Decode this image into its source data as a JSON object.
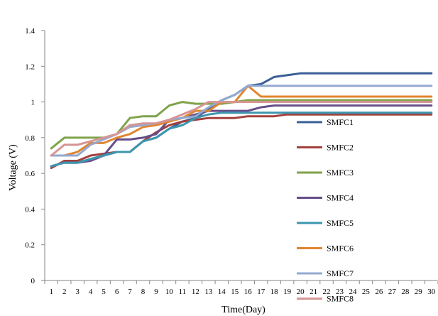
{
  "chart_data": {
    "type": "line",
    "title": "",
    "xlabel": "Time(Day)",
    "ylabel": "Voltage (V)",
    "ylim": [
      0,
      1.4
    ],
    "yticks": [
      "0",
      "0.2",
      "0.4",
      "0.6",
      "0.8",
      "1",
      "1.2",
      "1.4"
    ],
    "categories": [
      "1",
      "2",
      "3",
      "4",
      "5",
      "6",
      "7",
      "8",
      "9",
      "10",
      "11",
      "12",
      "13",
      "14",
      "15",
      "16",
      "17",
      "18",
      "19",
      "20",
      "21",
      "22",
      "23",
      "24",
      "25",
      "26",
      "27",
      "28",
      "29",
      "30"
    ],
    "grid": false,
    "legend_position": "right",
    "series": [
      {
        "name": "SMFC1",
        "color": "#3a5f97",
        "values": [
          0.64,
          0.66,
          0.66,
          0.68,
          0.7,
          0.72,
          0.72,
          0.78,
          0.8,
          0.85,
          0.89,
          0.91,
          0.96,
          1.01,
          1.04,
          1.09,
          1.1,
          1.14,
          1.15,
          1.16,
          1.16,
          1.16,
          1.16,
          1.16,
          1.16,
          1.16,
          1.16,
          1.16,
          1.16,
          1.16
        ]
      },
      {
        "name": "SMFC2",
        "color": "#a3403d",
        "values": [
          0.63,
          0.67,
          0.67,
          0.7,
          0.71,
          0.72,
          0.72,
          0.78,
          0.83,
          0.87,
          0.89,
          0.9,
          0.91,
          0.91,
          0.91,
          0.92,
          0.92,
          0.92,
          0.93,
          0.93,
          0.93,
          0.93,
          0.93,
          0.93,
          0.93,
          0.93,
          0.93,
          0.93,
          0.93,
          0.93
        ]
      },
      {
        "name": "SMFC3",
        "color": "#7fa34b",
        "values": [
          0.74,
          0.8,
          0.8,
          0.8,
          0.8,
          0.82,
          0.91,
          0.92,
          0.92,
          0.98,
          1.0,
          0.99,
          0.99,
          0.99,
          1.0,
          1.01,
          1.01,
          1.01,
          1.01,
          1.01,
          1.01,
          1.01,
          1.01,
          1.01,
          1.01,
          1.01,
          1.01,
          1.01,
          1.01,
          1.01
        ]
      },
      {
        "name": "SMFC4",
        "color": "#674d8a",
        "values": [
          0.64,
          0.66,
          0.66,
          0.67,
          0.7,
          0.79,
          0.79,
          0.8,
          0.82,
          0.9,
          0.91,
          0.93,
          0.95,
          0.95,
          0.95,
          0.95,
          0.97,
          0.98,
          0.98,
          0.98,
          0.98,
          0.98,
          0.98,
          0.98,
          0.98,
          0.98,
          0.98,
          0.98,
          0.98,
          0.98
        ]
      },
      {
        "name": "SMFC5",
        "color": "#3d96ae",
        "values": [
          0.64,
          0.66,
          0.66,
          0.68,
          0.7,
          0.72,
          0.72,
          0.78,
          0.8,
          0.85,
          0.87,
          0.91,
          0.93,
          0.94,
          0.94,
          0.94,
          0.94,
          0.94,
          0.94,
          0.94,
          0.94,
          0.94,
          0.94,
          0.94,
          0.94,
          0.94,
          0.94,
          0.94,
          0.94,
          0.94
        ]
      },
      {
        "name": "SMFC6",
        "color": "#e0852f",
        "values": [
          0.7,
          0.7,
          0.72,
          0.77,
          0.77,
          0.8,
          0.82,
          0.86,
          0.87,
          0.89,
          0.91,
          0.95,
          0.95,
          1.0,
          1.0,
          1.09,
          1.03,
          1.03,
          1.03,
          1.03,
          1.03,
          1.03,
          1.03,
          1.03,
          1.03,
          1.03,
          1.03,
          1.03,
          1.03,
          1.03
        ]
      },
      {
        "name": "SMFC7",
        "color": "#93a9d0",
        "values": [
          0.7,
          0.7,
          0.7,
          0.76,
          0.79,
          0.82,
          0.86,
          0.87,
          0.88,
          0.9,
          0.91,
          0.92,
          0.97,
          1.01,
          1.04,
          1.09,
          1.09,
          1.09,
          1.09,
          1.09,
          1.09,
          1.09,
          1.09,
          1.09,
          1.09,
          1.09,
          1.09,
          1.09,
          1.09,
          1.09
        ]
      },
      {
        "name": "SMFC8",
        "color": "#d69595",
        "values": [
          0.7,
          0.76,
          0.76,
          0.78,
          0.8,
          0.82,
          0.87,
          0.88,
          0.88,
          0.9,
          0.93,
          0.96,
          1.0,
          1.0,
          1.0,
          1.0,
          1.0,
          1.0,
          1.0,
          1.0,
          1.0,
          1.0,
          1.0,
          1.0,
          1.0,
          1.0,
          1.0,
          1.0,
          1.0,
          1.0
        ]
      }
    ]
  }
}
